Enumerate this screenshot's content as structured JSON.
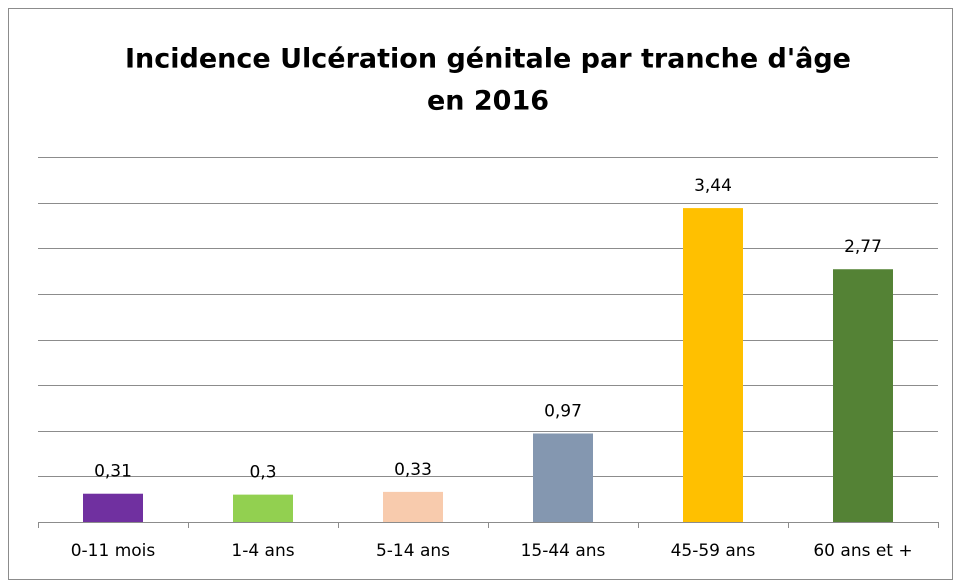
{
  "chart_data": {
    "type": "bar",
    "title": [
      "Incidence  Ulcération génitale par tranche d'âge",
      "en 2016"
    ],
    "categories": [
      "0-11 mois",
      "1-4 ans",
      "5-14 ans",
      "15-44 ans",
      "45-59 ans",
      "60 ans et +"
    ],
    "values": [
      0.31,
      0.3,
      0.33,
      0.97,
      3.44,
      2.77
    ],
    "value_labels": [
      "0,31",
      "0,3",
      "0,33",
      "0,97",
      "3,44",
      "2,77"
    ],
    "colors": [
      "#7030a0",
      "#92d050",
      "#f8cbad",
      "#8497b0",
      "#ffc000",
      "#548235"
    ],
    "ylim": [
      0,
      4
    ],
    "yticks": [
      0,
      0.5,
      1,
      1.5,
      2,
      2.5,
      3,
      3.5,
      4
    ],
    "grid": true
  }
}
